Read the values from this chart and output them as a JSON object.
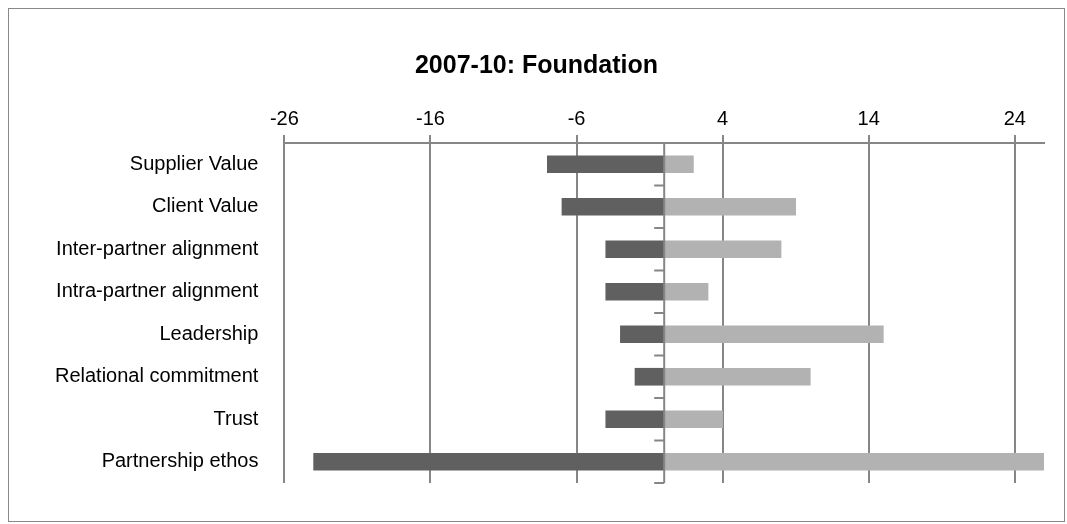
{
  "chart_data": {
    "type": "bar",
    "orientation": "horizontal",
    "stacked": true,
    "title": "2007-10: Foundation",
    "categories": [
      "Supplier Value",
      "Client Value",
      "Inter-partner alignment",
      "Intra-partner alignment",
      "Leadership",
      "Relational commitment",
      "Trust",
      "Partnership ethos"
    ],
    "series": [
      {
        "color": "#606060",
        "values": [
          -8,
          -7,
          -4,
          -4,
          -3,
          -2,
          -4,
          -24
        ]
      },
      {
        "color": "#b2b2b2",
        "values": [
          2,
          9,
          8,
          3,
          15,
          10,
          4,
          26
        ]
      }
    ],
    "xlim": [
      -26,
      26
    ],
    "xticks": [
      -26,
      -16,
      -6,
      4,
      14,
      24
    ],
    "grid": "x",
    "legend": false
  }
}
